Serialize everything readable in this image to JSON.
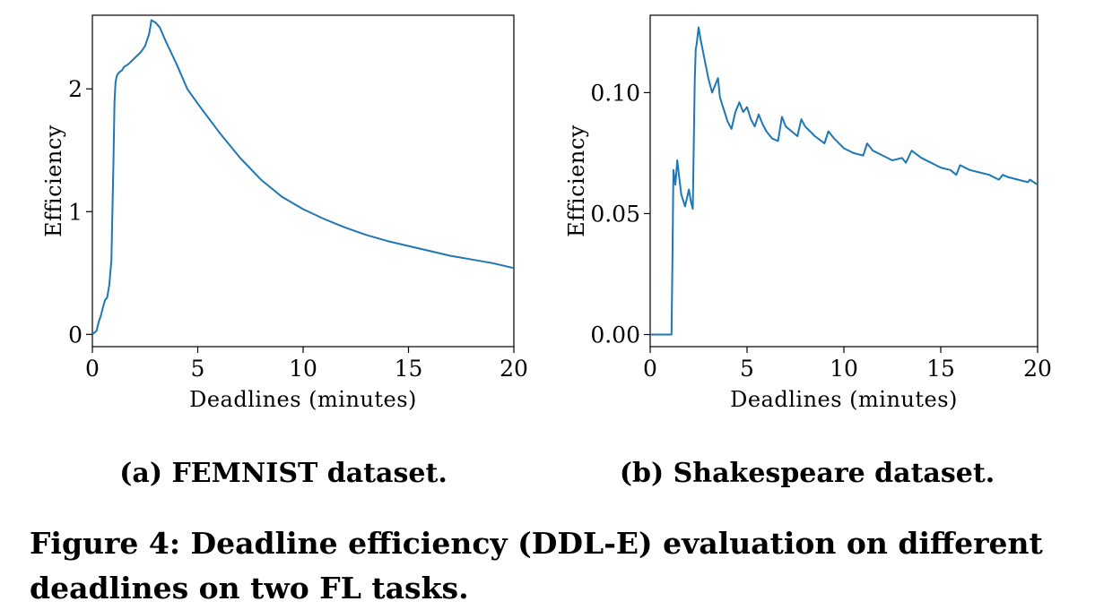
{
  "chart_data": [
    {
      "type": "line",
      "subcaption": "(a) FEMNIST dataset.",
      "title": "",
      "xlabel": "Deadlines (minutes)",
      "ylabel": "Efficiency",
      "xlim": [
        0,
        20
      ],
      "ylim": [
        -0.1,
        2.6
      ],
      "xticks": [
        0,
        5,
        10,
        15,
        20
      ],
      "xtick_labels": [
        "0",
        "5",
        "10",
        "15",
        "20"
      ],
      "yticks": [
        0,
        1,
        2
      ],
      "ytick_labels": [
        "0",
        "1",
        "2"
      ],
      "grid": false,
      "series": [
        {
          "color": "#1f77b4",
          "x": [
            0,
            0.2,
            0.3,
            0.4,
            0.5,
            0.6,
            0.7,
            0.8,
            0.9,
            1.0,
            1.05,
            1.1,
            1.15,
            1.2,
            1.3,
            1.4,
            1.5,
            1.7,
            2.0,
            2.3,
            2.5,
            2.7,
            2.8,
            3.0,
            3.2,
            3.5,
            4.0,
            4.5,
            5.0,
            6.0,
            7.0,
            8.0,
            9.0,
            10.0,
            11.0,
            12.0,
            13.0,
            14.0,
            15.0,
            16.0,
            17.0,
            18.0,
            19.0,
            20.0
          ],
          "y": [
            0.0,
            0.03,
            0.1,
            0.15,
            0.22,
            0.28,
            0.3,
            0.4,
            0.6,
            1.4,
            1.9,
            2.05,
            2.1,
            2.12,
            2.14,
            2.15,
            2.18,
            2.2,
            2.25,
            2.3,
            2.35,
            2.45,
            2.56,
            2.54,
            2.5,
            2.38,
            2.2,
            2.0,
            1.88,
            1.65,
            1.44,
            1.26,
            1.12,
            1.02,
            0.94,
            0.87,
            0.81,
            0.76,
            0.72,
            0.68,
            0.64,
            0.61,
            0.58,
            0.54
          ]
        }
      ]
    },
    {
      "type": "line",
      "subcaption": "(b) Shakespeare dataset.",
      "title": "",
      "xlabel": "Deadlines (minutes)",
      "ylabel": "Efficiency",
      "xlim": [
        0,
        20
      ],
      "ylim": [
        -0.005,
        0.132
      ],
      "xticks": [
        0,
        5,
        10,
        15,
        20
      ],
      "xtick_labels": [
        "0",
        "5",
        "10",
        "15",
        "20"
      ],
      "yticks": [
        0.0,
        0.05,
        0.1
      ],
      "ytick_labels": [
        "0.00",
        "0.05",
        "0.10"
      ],
      "grid": false,
      "series": [
        {
          "color": "#1f77b4",
          "x": [
            0,
            1.1,
            1.15,
            1.2,
            1.3,
            1.4,
            1.6,
            1.8,
            2.0,
            2.1,
            2.2,
            2.3,
            2.35,
            2.4,
            2.5,
            2.6,
            2.8,
            3.0,
            3.2,
            3.4,
            3.5,
            3.6,
            3.8,
            4.0,
            4.2,
            4.4,
            4.6,
            4.8,
            5.0,
            5.2,
            5.4,
            5.6,
            5.8,
            6.0,
            6.3,
            6.6,
            6.8,
            7.0,
            7.3,
            7.6,
            7.8,
            8.0,
            8.5,
            9.0,
            9.2,
            9.5,
            10.0,
            10.5,
            11.0,
            11.2,
            11.5,
            12.0,
            12.5,
            13.0,
            13.2,
            13.5,
            14.0,
            14.5,
            15.0,
            15.5,
            15.8,
            16.0,
            16.5,
            17.0,
            17.5,
            18.0,
            18.2,
            18.5,
            19.0,
            19.5,
            19.6,
            20.0
          ],
          "y": [
            0.0,
            0.0,
            0.03,
            0.068,
            0.062,
            0.072,
            0.058,
            0.053,
            0.06,
            0.055,
            0.052,
            0.105,
            0.118,
            0.12,
            0.127,
            0.122,
            0.114,
            0.106,
            0.1,
            0.104,
            0.106,
            0.098,
            0.093,
            0.088,
            0.085,
            0.092,
            0.096,
            0.092,
            0.094,
            0.089,
            0.086,
            0.091,
            0.087,
            0.084,
            0.081,
            0.08,
            0.09,
            0.086,
            0.084,
            0.082,
            0.089,
            0.086,
            0.082,
            0.079,
            0.084,
            0.081,
            0.077,
            0.075,
            0.074,
            0.079,
            0.076,
            0.074,
            0.072,
            0.073,
            0.071,
            0.076,
            0.073,
            0.071,
            0.069,
            0.068,
            0.066,
            0.07,
            0.068,
            0.067,
            0.066,
            0.064,
            0.066,
            0.065,
            0.064,
            0.063,
            0.064,
            0.062
          ]
        }
      ]
    }
  ],
  "caption": {
    "line1": "Figure 4: Deadline efficiency (DDL-E) evaluation on different",
    "line2": "deadlines on two FL tasks."
  }
}
